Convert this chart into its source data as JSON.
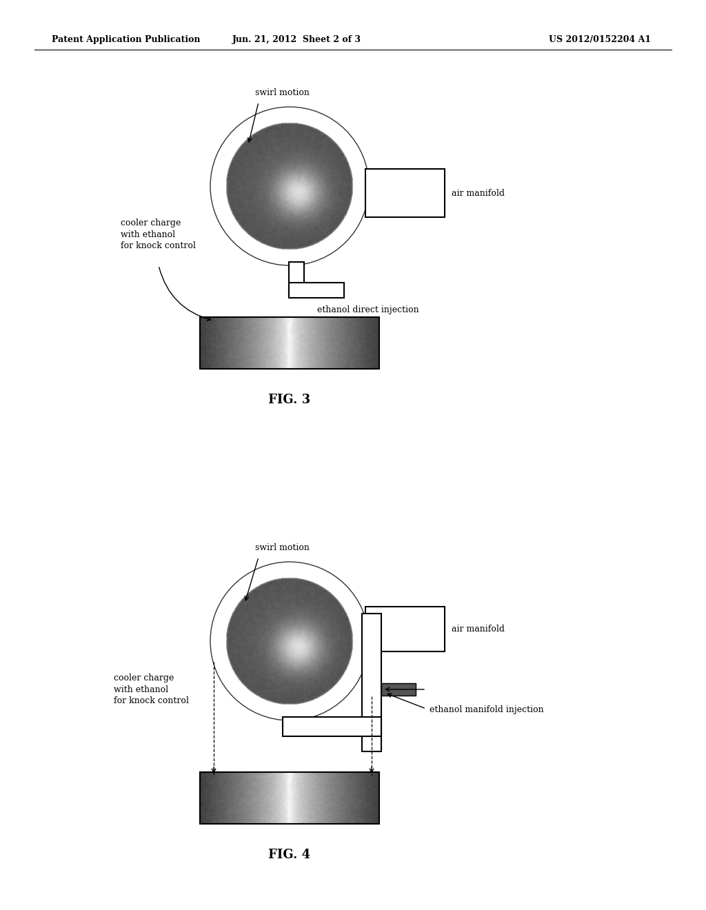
{
  "bg_color": "#ffffff",
  "header_left": "Patent Application Publication",
  "header_mid": "Jun. 21, 2012  Sheet 2 of 3",
  "header_right": "US 2012/0152204 A1",
  "fig3_label": "FIG. 3",
  "fig4_label": "FIG. 4",
  "fig3": {
    "swirl_label": "swirl motion",
    "air_manifold_label": "air manifold",
    "cooler_charge_label": "cooler charge\nwith ethanol\nfor knock control",
    "injection_label": "ethanol direct injection"
  },
  "fig4": {
    "swirl_label": "swirl motion",
    "air_manifold_label": "air manifold",
    "cooler_charge_label": "cooler charge\nwith ethanol\nfor knock control",
    "injection_label": "ethanol manifold injection"
  }
}
